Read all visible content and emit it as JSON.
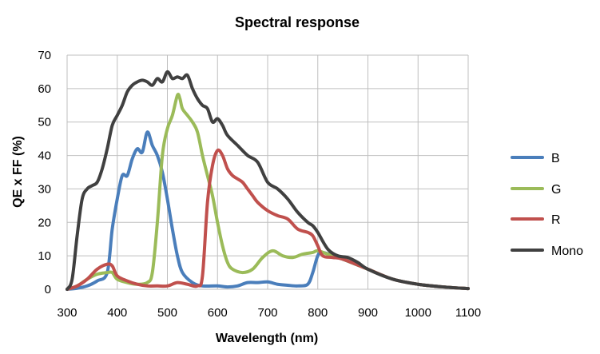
{
  "chart_data": {
    "type": "line",
    "title": "Spectral response",
    "xlabel": "Wavelength (nm)",
    "ylabel": "QE x FF (%)",
    "xlim": [
      300,
      1100
    ],
    "ylim": [
      0,
      70
    ],
    "x_ticks": [
      300,
      400,
      500,
      600,
      700,
      800,
      900,
      1000,
      1100
    ],
    "y_ticks": [
      0,
      10,
      20,
      30,
      40,
      50,
      60,
      70
    ],
    "grid": true,
    "legend_position": "right",
    "series": [
      {
        "name": "B",
        "color": "#4a7ebb",
        "points": [
          [
            300,
            0
          ],
          [
            320,
            0.3
          ],
          [
            340,
            1
          ],
          [
            360,
            2.5
          ],
          [
            380,
            5
          ],
          [
            390,
            18
          ],
          [
            400,
            27
          ],
          [
            410,
            34
          ],
          [
            420,
            34
          ],
          [
            430,
            39
          ],
          [
            440,
            42
          ],
          [
            450,
            41
          ],
          [
            460,
            47
          ],
          [
            470,
            43
          ],
          [
            480,
            40
          ],
          [
            490,
            35
          ],
          [
            500,
            27
          ],
          [
            510,
            18
          ],
          [
            520,
            10
          ],
          [
            530,
            5
          ],
          [
            550,
            2
          ],
          [
            570,
            1
          ],
          [
            600,
            1
          ],
          [
            620,
            0.7
          ],
          [
            640,
            1
          ],
          [
            660,
            2
          ],
          [
            680,
            2
          ],
          [
            700,
            2.2
          ],
          [
            720,
            1.5
          ],
          [
            740,
            1.2
          ],
          [
            760,
            1
          ],
          [
            780,
            1.5
          ],
          [
            790,
            5
          ],
          [
            800,
            10
          ],
          [
            810,
            11
          ],
          [
            850,
            9
          ],
          [
            900,
            6
          ],
          [
            950,
            3
          ],
          [
            1000,
            1.5
          ],
          [
            1050,
            0.7
          ],
          [
            1100,
            0.2
          ]
        ]
      },
      {
        "name": "G",
        "color": "#9bbb59",
        "points": [
          [
            300,
            0
          ],
          [
            320,
            1
          ],
          [
            340,
            3
          ],
          [
            360,
            4.5
          ],
          [
            380,
            5
          ],
          [
            390,
            5
          ],
          [
            400,
            3
          ],
          [
            420,
            2
          ],
          [
            440,
            1.5
          ],
          [
            460,
            2
          ],
          [
            470,
            5
          ],
          [
            480,
            20
          ],
          [
            490,
            40
          ],
          [
            500,
            48
          ],
          [
            510,
            52
          ],
          [
            520,
            58
          ],
          [
            525,
            57
          ],
          [
            530,
            54
          ],
          [
            540,
            52
          ],
          [
            550,
            50
          ],
          [
            560,
            47
          ],
          [
            570,
            40
          ],
          [
            580,
            34
          ],
          [
            590,
            28
          ],
          [
            600,
            20
          ],
          [
            610,
            13
          ],
          [
            620,
            8
          ],
          [
            630,
            6
          ],
          [
            650,
            5
          ],
          [
            670,
            6
          ],
          [
            690,
            9.5
          ],
          [
            710,
            11.5
          ],
          [
            730,
            10
          ],
          [
            750,
            9.5
          ],
          [
            770,
            10.5
          ],
          [
            790,
            11
          ],
          [
            800,
            11.5
          ],
          [
            820,
            10.5
          ],
          [
            850,
            9
          ],
          [
            900,
            6
          ],
          [
            950,
            3
          ],
          [
            1000,
            1.5
          ],
          [
            1050,
            0.7
          ],
          [
            1100,
            0.2
          ]
        ]
      },
      {
        "name": "R",
        "color": "#c0504d",
        "points": [
          [
            300,
            0
          ],
          [
            320,
            1
          ],
          [
            340,
            3
          ],
          [
            360,
            6
          ],
          [
            380,
            7.5
          ],
          [
            390,
            7
          ],
          [
            400,
            4
          ],
          [
            420,
            2.5
          ],
          [
            440,
            1.5
          ],
          [
            460,
            1
          ],
          [
            480,
            1
          ],
          [
            500,
            1
          ],
          [
            520,
            2
          ],
          [
            540,
            1.5
          ],
          [
            560,
            1
          ],
          [
            570,
            4
          ],
          [
            580,
            26
          ],
          [
            590,
            37
          ],
          [
            600,
            41.5
          ],
          [
            610,
            40
          ],
          [
            620,
            36
          ],
          [
            630,
            34
          ],
          [
            640,
            33
          ],
          [
            650,
            32
          ],
          [
            660,
            30
          ],
          [
            670,
            28
          ],
          [
            680,
            26
          ],
          [
            700,
            23.5
          ],
          [
            720,
            22
          ],
          [
            740,
            21
          ],
          [
            760,
            18
          ],
          [
            780,
            17
          ],
          [
            790,
            16
          ],
          [
            800,
            13
          ],
          [
            810,
            10
          ],
          [
            830,
            9.5
          ],
          [
            850,
            9
          ],
          [
            900,
            6
          ],
          [
            950,
            3
          ],
          [
            1000,
            1.5
          ],
          [
            1050,
            0.7
          ],
          [
            1100,
            0.2
          ]
        ]
      },
      {
        "name": "Mono",
        "color": "#404040",
        "points": [
          [
            300,
            0
          ],
          [
            310,
            3
          ],
          [
            320,
            16
          ],
          [
            330,
            27
          ],
          [
            340,
            30
          ],
          [
            350,
            31
          ],
          [
            360,
            32
          ],
          [
            370,
            36
          ],
          [
            380,
            42
          ],
          [
            390,
            49
          ],
          [
            400,
            52
          ],
          [
            410,
            55
          ],
          [
            420,
            59
          ],
          [
            430,
            61
          ],
          [
            440,
            62
          ],
          [
            450,
            62.5
          ],
          [
            460,
            62
          ],
          [
            470,
            61
          ],
          [
            480,
            63
          ],
          [
            490,
            62
          ],
          [
            500,
            65
          ],
          [
            510,
            63
          ],
          [
            520,
            63.5
          ],
          [
            530,
            63
          ],
          [
            540,
            64
          ],
          [
            550,
            60
          ],
          [
            560,
            57
          ],
          [
            570,
            55
          ],
          [
            580,
            54
          ],
          [
            590,
            50
          ],
          [
            600,
            51
          ],
          [
            610,
            49
          ],
          [
            620,
            46
          ],
          [
            640,
            43
          ],
          [
            660,
            40
          ],
          [
            680,
            38
          ],
          [
            700,
            32
          ],
          [
            720,
            30
          ],
          [
            740,
            27
          ],
          [
            760,
            23
          ],
          [
            780,
            20
          ],
          [
            790,
            19
          ],
          [
            800,
            17
          ],
          [
            820,
            12
          ],
          [
            840,
            10
          ],
          [
            860,
            9.5
          ],
          [
            880,
            8
          ],
          [
            900,
            6
          ],
          [
            950,
            3
          ],
          [
            1000,
            1.5
          ],
          [
            1050,
            0.7
          ],
          [
            1100,
            0.2
          ]
        ]
      }
    ]
  }
}
